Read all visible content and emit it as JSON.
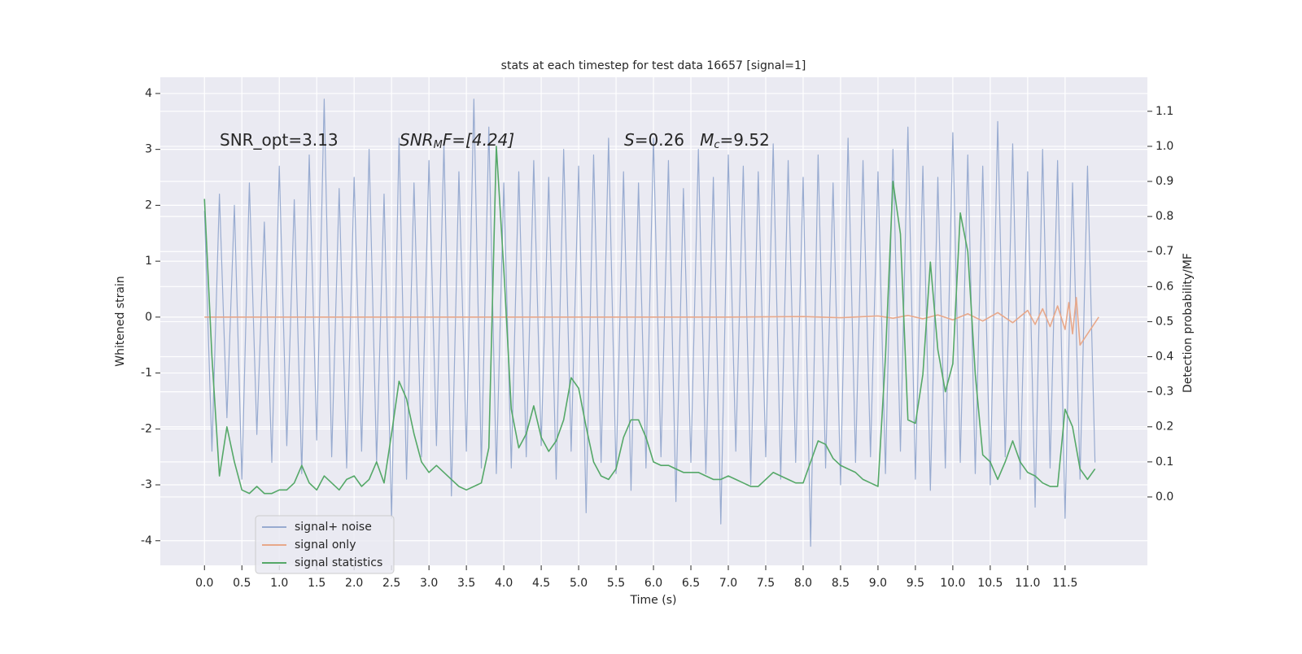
{
  "chart_data": {
    "type": "line",
    "title": "stats at each timestep for test data 16657 [signal=1]",
    "xlabel": "Time (s)",
    "ylabel": "Whitened strain",
    "y2label": "Detection probability/MF",
    "annotations": [
      {
        "parts": [
          "SNR_opt=3.13"
        ]
      },
      {
        "parts": [
          "SNR",
          "M",
          "F=[4.24]"
        ]
      },
      {
        "parts": [
          "S",
          "=0.26   ",
          "M",
          "c",
          "=9.52"
        ]
      }
    ],
    "grid": true,
    "legend": "lower left",
    "xlim": [
      -0.59,
      12.6
    ],
    "ylim": [
      -4.44,
      4.29
    ],
    "y2lim": [
      -0.195,
      1.197
    ],
    "xticks": [
      {
        "value": 0,
        "label": "0.0"
      },
      0.5,
      {
        "value": 1,
        "label": "1.0"
      },
      1.5,
      {
        "value": 2,
        "label": "2.0"
      },
      2.5,
      {
        "value": 3,
        "label": "3.0"
      },
      3.5,
      {
        "value": 4,
        "label": "4.0"
      },
      4.5,
      {
        "value": 5,
        "label": "5.0"
      },
      5.5,
      {
        "value": 6,
        "label": "6.0"
      },
      6.5,
      {
        "value": 7,
        "label": "7.0"
      },
      7.5,
      {
        "value": 8,
        "label": "8.0"
      },
      8.5,
      {
        "value": 9,
        "label": "9.0"
      },
      9.5,
      {
        "value": 10,
        "label": "10.0"
      },
      10.5,
      {
        "value": 11,
        "label": "11.0"
      },
      11.5
    ],
    "yticks": [
      -4,
      -3,
      -2,
      -1,
      0,
      1,
      2,
      3,
      4
    ],
    "y2ticks": [
      {
        "value": 0,
        "label": "0.0"
      },
      0.1,
      0.2,
      0.3,
      0.4,
      0.5,
      0.6,
      0.7,
      0.8,
      0.9,
      {
        "value": 1,
        "label": "1.0"
      },
      1.1
    ],
    "x": [
      0.0,
      0.1,
      0.2,
      0.3,
      0.4,
      0.5,
      0.6,
      0.7,
      0.8,
      0.9,
      1.0,
      1.1,
      1.2,
      1.3,
      1.4,
      1.5,
      1.6,
      1.7,
      1.8,
      1.9,
      2.0,
      2.1,
      2.2,
      2.3,
      2.4,
      2.5,
      2.6,
      2.7,
      2.8,
      2.9,
      3.0,
      3.1,
      3.2,
      3.3,
      3.4,
      3.5,
      3.6,
      3.7,
      3.8,
      3.9,
      4.0,
      4.1,
      4.2,
      4.3,
      4.4,
      4.5,
      4.6,
      4.7,
      4.8,
      4.9,
      5.0,
      5.1,
      5.2,
      5.3,
      5.4,
      5.5,
      5.6,
      5.7,
      5.8,
      5.9,
      6.0,
      6.1,
      6.2,
      6.3,
      6.4,
      6.5,
      6.6,
      6.7,
      6.8,
      6.9,
      7.0,
      7.1,
      7.2,
      7.3,
      7.4,
      7.5,
      7.6,
      7.7,
      7.8,
      7.9,
      8.0,
      8.1,
      8.2,
      8.3,
      8.4,
      8.5,
      8.6,
      8.7,
      8.8,
      8.9,
      9.0,
      9.1,
      9.2,
      9.3,
      9.4,
      9.5,
      9.6,
      9.7,
      9.8,
      9.9,
      10.0,
      10.1,
      10.2,
      10.3,
      10.4,
      10.5,
      10.6,
      10.7,
      10.8,
      10.9,
      11.0,
      11.1,
      11.2,
      11.3,
      11.4,
      11.5,
      11.6,
      11.7,
      11.8,
      11.9
    ],
    "series": [
      {
        "name": "signal+ noise",
        "color": "#98abd0",
        "values": [
          1.9,
          -2.4,
          2.2,
          -1.8,
          2.0,
          -2.9,
          2.4,
          -2.1,
          1.7,
          -2.6,
          2.7,
          -2.3,
          2.1,
          -2.8,
          2.9,
          -2.2,
          3.9,
          -2.5,
          2.3,
          -2.7,
          2.5,
          -2.4,
          3.0,
          -2.6,
          2.2,
          -3.6,
          3.2,
          -2.9,
          2.4,
          -2.5,
          2.8,
          -2.3,
          3.1,
          -3.2,
          2.6,
          -2.4,
          3.9,
          -2.7,
          3.4,
          -2.8,
          2.4,
          -2.7,
          2.6,
          -2.5,
          2.8,
          -2.3,
          2.5,
          -2.9,
          3.0,
          -2.4,
          2.7,
          -3.5,
          2.9,
          -2.6,
          3.2,
          -2.8,
          2.6,
          -3.1,
          2.4,
          -2.7,
          3.2,
          -2.5,
          2.8,
          -3.3,
          2.3,
          -2.6,
          3.0,
          -2.8,
          2.5,
          -3.7,
          2.9,
          -2.4,
          2.7,
          -3.0,
          2.6,
          -2.5,
          3.1,
          -2.9,
          2.8,
          -2.6,
          2.5,
          -4.1,
          2.9,
          -2.7,
          2.4,
          -3.0,
          3.2,
          -2.6,
          2.8,
          -2.5,
          2.6,
          -2.8,
          3.0,
          -2.4,
          3.4,
          -2.9,
          2.7,
          -3.1,
          2.5,
          -2.7,
          3.3,
          -2.6,
          2.9,
          -2.8,
          2.7,
          -3.0,
          3.5,
          -2.5,
          3.1,
          -2.9,
          2.6,
          -3.4,
          3.0,
          -2.7,
          2.8,
          -3.6,
          2.4,
          -2.9,
          2.7,
          -2.6
        ]
      },
      {
        "name": "signal only",
        "color": "#e8a88a",
        "x": [
          0,
          1,
          2,
          3,
          4,
          5,
          6,
          7,
          8,
          8.5,
          9,
          9.2,
          9.4,
          9.6,
          9.8,
          10,
          10.2,
          10.4,
          10.6,
          10.8,
          11,
          11.1,
          11.2,
          11.3,
          11.4,
          11.5,
          11.55,
          11.6,
          11.65,
          11.7,
          11.95
        ],
        "values": [
          0,
          0,
          0,
          0,
          0,
          0,
          0,
          0,
          0.01,
          -0.01,
          0.02,
          -0.02,
          0.03,
          -0.03,
          0.04,
          -0.05,
          0.06,
          -0.07,
          0.08,
          -0.1,
          0.12,
          -0.13,
          0.15,
          -0.17,
          0.2,
          -0.22,
          0.26,
          -0.3,
          0.35,
          -0.5,
          0
        ]
      },
      {
        "name": "signal statistics",
        "color": "#55a868",
        "axis": "y2",
        "values": [
          0.85,
          0.4,
          0.06,
          0.2,
          0.1,
          0.02,
          0.01,
          0.03,
          0.01,
          0.01,
          0.02,
          0.02,
          0.04,
          0.09,
          0.04,
          0.02,
          0.06,
          0.04,
          0.02,
          0.05,
          0.06,
          0.03,
          0.05,
          0.1,
          0.04,
          0.18,
          0.33,
          0.28,
          0.18,
          0.1,
          0.07,
          0.09,
          0.07,
          0.05,
          0.03,
          0.02,
          0.03,
          0.04,
          0.14,
          1.0,
          0.65,
          0.25,
          0.14,
          0.18,
          0.26,
          0.17,
          0.13,
          0.16,
          0.22,
          0.34,
          0.31,
          0.2,
          0.1,
          0.06,
          0.05,
          0.08,
          0.17,
          0.22,
          0.22,
          0.17,
          0.1,
          0.09,
          0.09,
          0.08,
          0.07,
          0.07,
          0.07,
          0.06,
          0.05,
          0.05,
          0.06,
          0.05,
          0.04,
          0.03,
          0.03,
          0.05,
          0.07,
          0.06,
          0.05,
          0.04,
          0.04,
          0.1,
          0.16,
          0.15,
          0.11,
          0.09,
          0.08,
          0.07,
          0.05,
          0.04,
          0.03,
          0.4,
          0.9,
          0.75,
          0.22,
          0.21,
          0.35,
          0.67,
          0.42,
          0.3,
          0.38,
          0.81,
          0.7,
          0.35,
          0.12,
          0.1,
          0.05,
          0.1,
          0.16,
          0.1,
          0.07,
          0.06,
          0.04,
          0.03,
          0.03,
          0.25,
          0.2,
          0.08,
          0.05,
          0.08
        ]
      }
    ]
  }
}
